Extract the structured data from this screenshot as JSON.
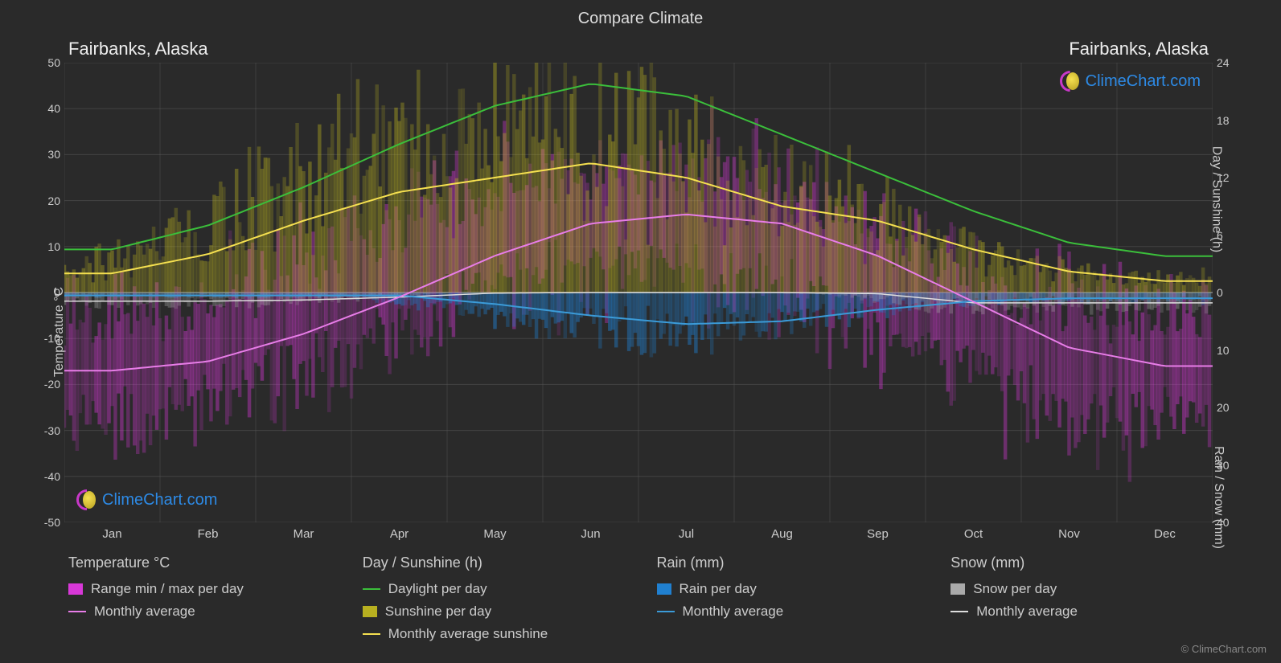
{
  "title": "Compare Climate",
  "location_left": "Fairbanks, Alaska",
  "location_right": "Fairbanks, Alaska",
  "logo_text": "ClimeChart.com",
  "copyright": "© ClimeChart.com",
  "background_color": "#2a2a2a",
  "grid_color": "#555555",
  "text_color": "#cccccc",
  "plot": {
    "months": [
      "Jan",
      "Feb",
      "Mar",
      "Apr",
      "May",
      "Jun",
      "Jul",
      "Aug",
      "Sep",
      "Oct",
      "Nov",
      "Dec"
    ],
    "left_axis": {
      "label": "Temperature °C",
      "min": -50,
      "max": 50,
      "step": 10,
      "ticks": [
        50,
        40,
        30,
        20,
        10,
        0,
        -10,
        -20,
        -30,
        -40,
        -50
      ]
    },
    "right_axis_top": {
      "label": "Day / Sunshine (h)",
      "min": 0,
      "max": 24,
      "step": 6,
      "ticks": [
        24,
        18,
        12,
        6,
        0
      ]
    },
    "right_axis_bot": {
      "label": "Rain / Snow (mm)",
      "min": 0,
      "max": 40,
      "step": 10,
      "ticks": [
        0,
        10,
        20,
        30,
        40
      ]
    },
    "series": {
      "daylight": {
        "color": "#3bbf3b",
        "width": 2,
        "values_h": [
          4.5,
          7.0,
          11.0,
          15.5,
          19.5,
          21.8,
          20.5,
          16.5,
          12.5,
          8.5,
          5.2,
          3.8
        ]
      },
      "sunshine_avg": {
        "color": "#f5e050",
        "width": 2,
        "values_h": [
          2.0,
          4.0,
          7.5,
          10.5,
          12.0,
          13.5,
          12.0,
          9.0,
          7.5,
          4.5,
          2.2,
          1.2
        ]
      },
      "temp_avg": {
        "color": "#e87de8",
        "width": 2,
        "values_c": [
          -17,
          -15,
          -9,
          -1,
          8,
          15,
          17,
          15,
          8,
          -2,
          -12,
          -16
        ]
      },
      "rain_avg": {
        "color": "#3b9bd8",
        "width": 2,
        "values_mm": [
          0.5,
          0.5,
          0.5,
          0.5,
          2.0,
          4.0,
          5.5,
          5.0,
          3.0,
          1.5,
          1.0,
          1.0
        ]
      },
      "snow_avg": {
        "color": "#dddddd",
        "width": 1.5,
        "values_mm": [
          1.5,
          1.5,
          1.3,
          0.8,
          0.1,
          0,
          0,
          0,
          0.2,
          1.8,
          1.8,
          1.8
        ]
      },
      "temp_range_fill": {
        "color": "#d838d8",
        "opacity": 0.35
      },
      "sunshine_bars": {
        "color": "#b8b020",
        "opacity": 0.35
      },
      "rain_bars": {
        "color": "#2080d0",
        "opacity": 0.4
      },
      "snow_bars": {
        "color": "#aaaaaa",
        "opacity": 0.3
      }
    }
  },
  "legend": {
    "groups": [
      {
        "header": "Temperature °C",
        "items": [
          {
            "swatch_type": "box",
            "color": "#d838d8",
            "label": "Range min / max per day"
          },
          {
            "swatch_type": "line",
            "color": "#e87de8",
            "label": "Monthly average"
          }
        ]
      },
      {
        "header": "Day / Sunshine (h)",
        "items": [
          {
            "swatch_type": "line",
            "color": "#3bbf3b",
            "label": "Daylight per day"
          },
          {
            "swatch_type": "box",
            "color": "#b8b020",
            "label": "Sunshine per day"
          },
          {
            "swatch_type": "line",
            "color": "#f5e050",
            "label": "Monthly average sunshine"
          }
        ]
      },
      {
        "header": "Rain (mm)",
        "items": [
          {
            "swatch_type": "box",
            "color": "#2080d0",
            "label": "Rain per day"
          },
          {
            "swatch_type": "line",
            "color": "#3b9bd8",
            "label": "Monthly average"
          }
        ]
      },
      {
        "header": "Snow (mm)",
        "items": [
          {
            "swatch_type": "box",
            "color": "#aaaaaa",
            "label": "Snow per day"
          },
          {
            "swatch_type": "line",
            "color": "#dddddd",
            "label": "Monthly average"
          }
        ]
      }
    ]
  }
}
